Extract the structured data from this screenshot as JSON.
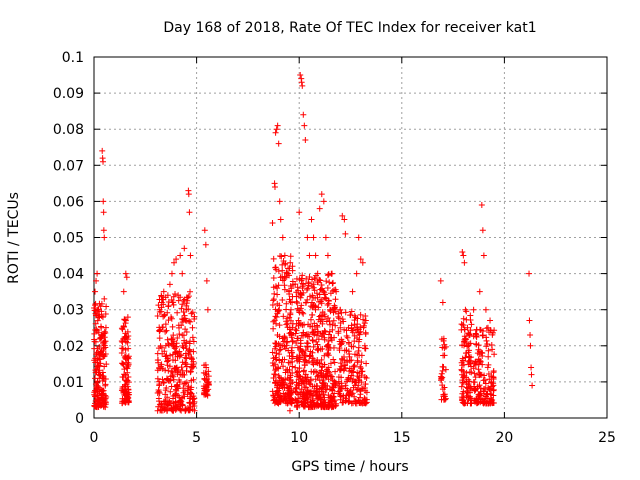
{
  "chart_data": {
    "type": "scatter",
    "title": "Day 168 of 2018, Rate Of TEC Index for receiver kat1",
    "xlabel": "GPS time / hours",
    "ylabel": "ROTI / TECUs",
    "xlim": [
      0,
      25
    ],
    "ylim": [
      0,
      0.1
    ],
    "grid": true,
    "marker": "+",
    "marker_color": "#ff0000",
    "x_ticks": [
      "0",
      "5",
      "10",
      "15",
      "20",
      "25"
    ],
    "x_tick_values": [
      0,
      5,
      10,
      15,
      20,
      25
    ],
    "y_ticks": [
      "0",
      "0.01",
      "0.02",
      "0.03",
      "0.04",
      "0.05",
      "0.06",
      "0.07",
      "0.08",
      "0.09",
      "0.1"
    ],
    "y_tick_values": [
      0,
      0.01,
      0.02,
      0.03,
      0.04,
      0.05,
      0.06,
      0.07,
      0.08,
      0.09,
      0.1
    ],
    "series": [
      {
        "name": "kat1",
        "points": [
          [
            0.05,
            0.035
          ],
          [
            0.1,
            0.038
          ],
          [
            0.15,
            0.04
          ],
          [
            0.2,
            0.03
          ],
          [
            0.25,
            0.012
          ],
          [
            0.3,
            0.008
          ],
          [
            0.35,
            0.025
          ],
          [
            0.4,
            0.074
          ],
          [
            0.42,
            0.072
          ],
          [
            0.44,
            0.071
          ],
          [
            0.45,
            0.06
          ],
          [
            0.47,
            0.057
          ],
          [
            0.48,
            0.052
          ],
          [
            0.5,
            0.05
          ],
          [
            0.5,
            0.033
          ],
          [
            0.52,
            0.005
          ],
          [
            0.55,
            0.003
          ],
          [
            1.45,
            0.035
          ],
          [
            1.5,
            0.022
          ],
          [
            1.55,
            0.04
          ],
          [
            1.6,
            0.039
          ],
          [
            1.62,
            0.005
          ],
          [
            3.2,
            0.03
          ],
          [
            3.3,
            0.032
          ],
          [
            3.4,
            0.035
          ],
          [
            3.5,
            0.02
          ],
          [
            3.7,
            0.037
          ],
          [
            3.8,
            0.04
          ],
          [
            3.9,
            0.043
          ],
          [
            4.0,
            0.044
          ],
          [
            4.1,
            0.034
          ],
          [
            4.2,
            0.045
          ],
          [
            4.3,
            0.04
          ],
          [
            4.4,
            0.047
          ],
          [
            4.5,
            0.03
          ],
          [
            4.6,
            0.063
          ],
          [
            4.62,
            0.062
          ],
          [
            4.65,
            0.057
          ],
          [
            4.7,
            0.045
          ],
          [
            4.8,
            0.025
          ],
          [
            4.9,
            0.002
          ],
          [
            5.4,
            0.052
          ],
          [
            5.45,
            0.048
          ],
          [
            5.5,
            0.038
          ],
          [
            5.55,
            0.03
          ],
          [
            5.6,
            0.01
          ],
          [
            8.7,
            0.054
          ],
          [
            8.8,
            0.065
          ],
          [
            8.82,
            0.064
          ],
          [
            8.85,
            0.079
          ],
          [
            8.9,
            0.08
          ],
          [
            8.95,
            0.081
          ],
          [
            9.0,
            0.076
          ],
          [
            9.05,
            0.06
          ],
          [
            9.1,
            0.055
          ],
          [
            9.2,
            0.05
          ],
          [
            9.3,
            0.045
          ],
          [
            9.4,
            0.04
          ],
          [
            9.5,
            0.035
          ],
          [
            9.55,
            0.002
          ],
          [
            9.6,
            0.03
          ],
          [
            10.0,
            0.057
          ],
          [
            10.05,
            0.095
          ],
          [
            10.1,
            0.094
          ],
          [
            10.12,
            0.093
          ],
          [
            10.15,
            0.092
          ],
          [
            10.2,
            0.084
          ],
          [
            10.25,
            0.081
          ],
          [
            10.3,
            0.077
          ],
          [
            10.4,
            0.05
          ],
          [
            10.5,
            0.045
          ],
          [
            10.6,
            0.055
          ],
          [
            10.7,
            0.05
          ],
          [
            10.8,
            0.045
          ],
          [
            10.9,
            0.04
          ],
          [
            11.0,
            0.058
          ],
          [
            11.1,
            0.062
          ],
          [
            11.2,
            0.06
          ],
          [
            11.3,
            0.05
          ],
          [
            11.4,
            0.045
          ],
          [
            11.5,
            0.03
          ],
          [
            11.6,
            0.04
          ],
          [
            11.8,
            0.035
          ],
          [
            12.0,
            0.03
          ],
          [
            12.1,
            0.056
          ],
          [
            12.2,
            0.055
          ],
          [
            12.25,
            0.051
          ],
          [
            12.4,
            0.025
          ],
          [
            12.6,
            0.035
          ],
          [
            12.8,
            0.04
          ],
          [
            12.9,
            0.05
          ],
          [
            13.0,
            0.044
          ],
          [
            13.1,
            0.043
          ],
          [
            13.2,
            0.02
          ],
          [
            16.9,
            0.038
          ],
          [
            17.0,
            0.032
          ],
          [
            17.05,
            0.022
          ],
          [
            17.1,
            0.006
          ],
          [
            17.95,
            0.046
          ],
          [
            18.0,
            0.045
          ],
          [
            18.05,
            0.043
          ],
          [
            18.1,
            0.03
          ],
          [
            18.2,
            0.025
          ],
          [
            18.5,
            0.03
          ],
          [
            18.8,
            0.035
          ],
          [
            18.9,
            0.059
          ],
          [
            18.95,
            0.052
          ],
          [
            19.0,
            0.045
          ],
          [
            19.1,
            0.03
          ],
          [
            19.2,
            0.025
          ],
          [
            19.3,
            0.027
          ],
          [
            19.4,
            0.005
          ],
          [
            21.2,
            0.04
          ],
          [
            21.22,
            0.027
          ],
          [
            21.25,
            0.023
          ],
          [
            21.27,
            0.02
          ],
          [
            21.3,
            0.014
          ],
          [
            21.32,
            0.012
          ],
          [
            21.35,
            0.009
          ]
        ],
        "clusters": [
          {
            "x": [
              0.0,
              0.6
            ],
            "y": [
              0.003,
              0.032
            ],
            "n": 180
          },
          {
            "x": [
              1.35,
              1.7
            ],
            "y": [
              0.004,
              0.028
            ],
            "n": 110
          },
          {
            "x": [
              3.1,
              4.9
            ],
            "y": [
              0.002,
              0.035
            ],
            "n": 340
          },
          {
            "x": [
              5.35,
              5.6
            ],
            "y": [
              0.006,
              0.015
            ],
            "n": 40
          },
          {
            "x": [
              8.7,
              9.7
            ],
            "y": [
              0.004,
              0.045
            ],
            "n": 260
          },
          {
            "x": [
              9.8,
              11.8
            ],
            "y": [
              0.003,
              0.04
            ],
            "n": 520
          },
          {
            "x": [
              11.9,
              13.3
            ],
            "y": [
              0.004,
              0.03
            ],
            "n": 220
          },
          {
            "x": [
              16.9,
              17.15
            ],
            "y": [
              0.005,
              0.023
            ],
            "n": 30
          },
          {
            "x": [
              17.9,
              18.4
            ],
            "y": [
              0.004,
              0.03
            ],
            "n": 110
          },
          {
            "x": [
              18.5,
              19.5
            ],
            "y": [
              0.004,
              0.025
            ],
            "n": 160
          }
        ]
      }
    ]
  }
}
